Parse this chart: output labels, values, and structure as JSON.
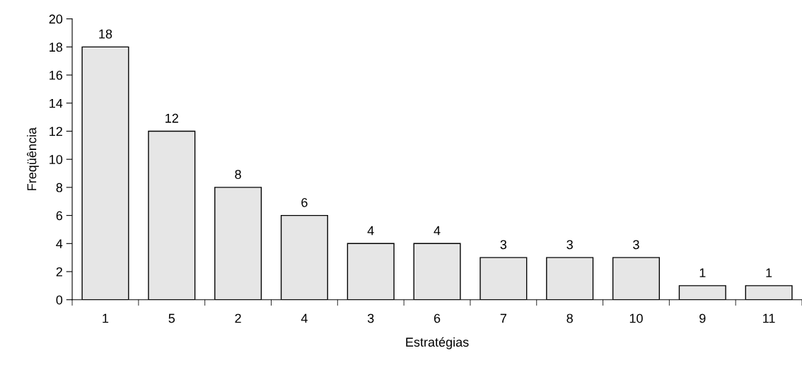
{
  "chart_data": {
    "type": "bar",
    "xlabel": "Estratégias",
    "ylabel": "Freqüência",
    "categories": [
      "1",
      "5",
      "2",
      "4",
      "3",
      "6",
      "7",
      "8",
      "10",
      "9",
      "11"
    ],
    "values": [
      18,
      12,
      8,
      6,
      4,
      4,
      3,
      3,
      3,
      1,
      1
    ],
    "color": "#e6e6e6",
    "ylim": [
      0,
      20
    ],
    "yticks": [
      0,
      2,
      4,
      6,
      8,
      10,
      12,
      14,
      16,
      18,
      20
    ],
    "data_labels": true,
    "grid": false,
    "legend": false
  }
}
